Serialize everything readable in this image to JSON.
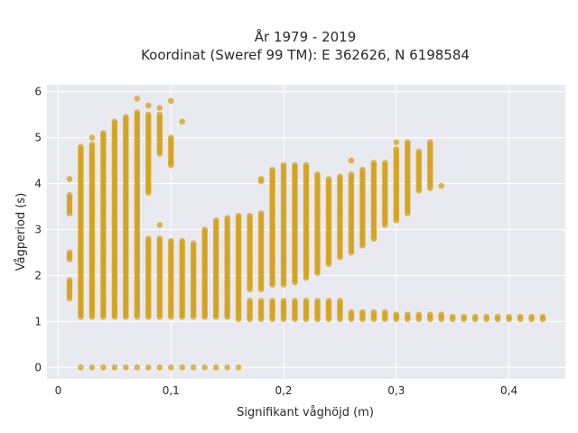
{
  "chart_data": {
    "type": "scatter",
    "title_lines": [
      "År 1979 - 2019",
      "Koordinat (Sweref 99 TM): E 362626, N 6198584"
    ],
    "xlabel": "Signifikant våghöjd (m)",
    "ylabel": "Vågperiod (s)",
    "xlim": [
      -0.01,
      0.45
    ],
    "ylim": [
      -0.25,
      6.15
    ],
    "x_ticks": [
      {
        "value": 0,
        "label": "0"
      },
      {
        "value": 0.1,
        "label": "0,1"
      },
      {
        "value": 0.2,
        "label": "0,2"
      },
      {
        "value": 0.3,
        "label": "0,3"
      },
      {
        "value": 0.4,
        "label": "0,4"
      }
    ],
    "y_ticks": [
      {
        "value": 0,
        "label": "0"
      },
      {
        "value": 1,
        "label": "1"
      },
      {
        "value": 2,
        "label": "2"
      },
      {
        "value": 3,
        "label": "3"
      },
      {
        "value": 4,
        "label": "4"
      },
      {
        "value": 5,
        "label": "5"
      },
      {
        "value": 6,
        "label": "6"
      }
    ],
    "grid": true,
    "marker_color": "#d4a017",
    "plot_background": "#e9e9f0",
    "x_step": 0.01,
    "columns": [
      {
        "x": 0.01,
        "segments": [
          [
            1.5,
            1.9
          ],
          [
            2.35,
            2.5
          ],
          [
            3.35,
            3.75
          ],
          [
            4.1,
            4.1
          ]
        ]
      },
      {
        "x": 0.02,
        "segments": [
          [
            0,
            0
          ],
          [
            1.1,
            4.8
          ]
        ]
      },
      {
        "x": 0.03,
        "segments": [
          [
            0,
            0
          ],
          [
            1.1,
            4.85
          ],
          [
            5.0,
            5.0
          ]
        ]
      },
      {
        "x": 0.04,
        "segments": [
          [
            0,
            0
          ],
          [
            1.1,
            5.1
          ]
        ]
      },
      {
        "x": 0.05,
        "segments": [
          [
            0,
            0
          ],
          [
            1.1,
            5.35
          ]
        ]
      },
      {
        "x": 0.06,
        "segments": [
          [
            0,
            0
          ],
          [
            1.1,
            5.45
          ]
        ]
      },
      {
        "x": 0.07,
        "segments": [
          [
            0,
            0
          ],
          [
            1.1,
            5.55
          ],
          [
            5.85,
            5.85
          ]
        ]
      },
      {
        "x": 0.08,
        "segments": [
          [
            0,
            0
          ],
          [
            1.1,
            2.8
          ],
          [
            3.8,
            5.5
          ],
          [
            5.7,
            5.7
          ]
        ]
      },
      {
        "x": 0.09,
        "segments": [
          [
            0,
            0
          ],
          [
            1.1,
            2.8
          ],
          [
            3.1,
            3.1
          ],
          [
            4.65,
            5.5
          ],
          [
            5.65,
            5.65
          ]
        ]
      },
      {
        "x": 0.1,
        "segments": [
          [
            0,
            0
          ],
          [
            1.1,
            2.75
          ],
          [
            4.4,
            5.0
          ],
          [
            5.8,
            5.8
          ]
        ]
      },
      {
        "x": 0.11,
        "segments": [
          [
            0,
            0
          ],
          [
            1.1,
            2.75
          ],
          [
            5.35,
            5.35
          ]
        ]
      },
      {
        "x": 0.12,
        "segments": [
          [
            0,
            0
          ],
          [
            1.1,
            2.7
          ]
        ]
      },
      {
        "x": 0.13,
        "segments": [
          [
            0,
            0
          ],
          [
            1.1,
            3.0
          ]
        ]
      },
      {
        "x": 0.14,
        "segments": [
          [
            0,
            0
          ],
          [
            1.1,
            3.2
          ]
        ]
      },
      {
        "x": 0.15,
        "segments": [
          [
            0,
            0
          ],
          [
            1.1,
            3.25
          ]
        ]
      },
      {
        "x": 0.16,
        "segments": [
          [
            0,
            0
          ],
          [
            1.05,
            3.3
          ]
        ]
      },
      {
        "x": 0.17,
        "segments": [
          [
            1.05,
            1.45
          ],
          [
            1.7,
            3.3
          ]
        ]
      },
      {
        "x": 0.18,
        "segments": [
          [
            1.05,
            1.45
          ],
          [
            1.7,
            3.35
          ],
          [
            4.05,
            4.1
          ]
        ]
      },
      {
        "x": 0.19,
        "segments": [
          [
            1.05,
            1.45
          ],
          [
            1.8,
            4.3
          ]
        ]
      },
      {
        "x": 0.2,
        "segments": [
          [
            1.05,
            1.45
          ],
          [
            1.8,
            4.4
          ]
        ]
      },
      {
        "x": 0.21,
        "segments": [
          [
            1.05,
            1.45
          ],
          [
            1.85,
            4.4
          ]
        ]
      },
      {
        "x": 0.22,
        "segments": [
          [
            1.05,
            1.45
          ],
          [
            1.95,
            4.4
          ]
        ]
      },
      {
        "x": 0.23,
        "segments": [
          [
            1.05,
            1.45
          ],
          [
            2.05,
            4.2
          ]
        ]
      },
      {
        "x": 0.24,
        "segments": [
          [
            1.05,
            1.45
          ],
          [
            2.25,
            4.1
          ]
        ]
      },
      {
        "x": 0.25,
        "segments": [
          [
            1.05,
            1.45
          ],
          [
            2.4,
            4.15
          ]
        ]
      },
      {
        "x": 0.26,
        "segments": [
          [
            1.05,
            1.2
          ],
          [
            2.5,
            4.2
          ],
          [
            4.5,
            4.5
          ]
        ]
      },
      {
        "x": 0.27,
        "segments": [
          [
            1.05,
            1.2
          ],
          [
            2.65,
            4.3
          ]
        ]
      },
      {
        "x": 0.28,
        "segments": [
          [
            1.05,
            1.2
          ],
          [
            2.8,
            4.45
          ]
        ]
      },
      {
        "x": 0.29,
        "segments": [
          [
            1.05,
            1.2
          ],
          [
            3.1,
            4.45
          ]
        ]
      },
      {
        "x": 0.3,
        "segments": [
          [
            1.05,
            1.15
          ],
          [
            3.2,
            4.75
          ],
          [
            4.9,
            4.9
          ]
        ]
      },
      {
        "x": 0.31,
        "segments": [
          [
            1.05,
            1.15
          ],
          [
            3.35,
            4.9
          ]
        ]
      },
      {
        "x": 0.32,
        "segments": [
          [
            1.05,
            1.15
          ],
          [
            3.85,
            4.7
          ]
        ]
      },
      {
        "x": 0.33,
        "segments": [
          [
            1.05,
            1.15
          ],
          [
            3.9,
            4.9
          ]
        ]
      },
      {
        "x": 0.34,
        "segments": [
          [
            1.05,
            1.15
          ],
          [
            3.95,
            3.95
          ]
        ]
      },
      {
        "x": 0.35,
        "segments": [
          [
            1.05,
            1.1
          ]
        ]
      },
      {
        "x": 0.36,
        "segments": [
          [
            1.05,
            1.1
          ]
        ]
      },
      {
        "x": 0.37,
        "segments": [
          [
            1.05,
            1.1
          ]
        ]
      },
      {
        "x": 0.38,
        "segments": [
          [
            1.05,
            1.1
          ]
        ]
      },
      {
        "x": 0.39,
        "segments": [
          [
            1.05,
            1.1
          ]
        ]
      },
      {
        "x": 0.4,
        "segments": [
          [
            1.05,
            1.1
          ]
        ]
      },
      {
        "x": 0.41,
        "segments": [
          [
            1.05,
            1.1
          ]
        ]
      },
      {
        "x": 0.42,
        "segments": [
          [
            1.05,
            1.1
          ]
        ]
      },
      {
        "x": 0.43,
        "segments": [
          [
            1.05,
            1.1
          ]
        ]
      }
    ]
  }
}
